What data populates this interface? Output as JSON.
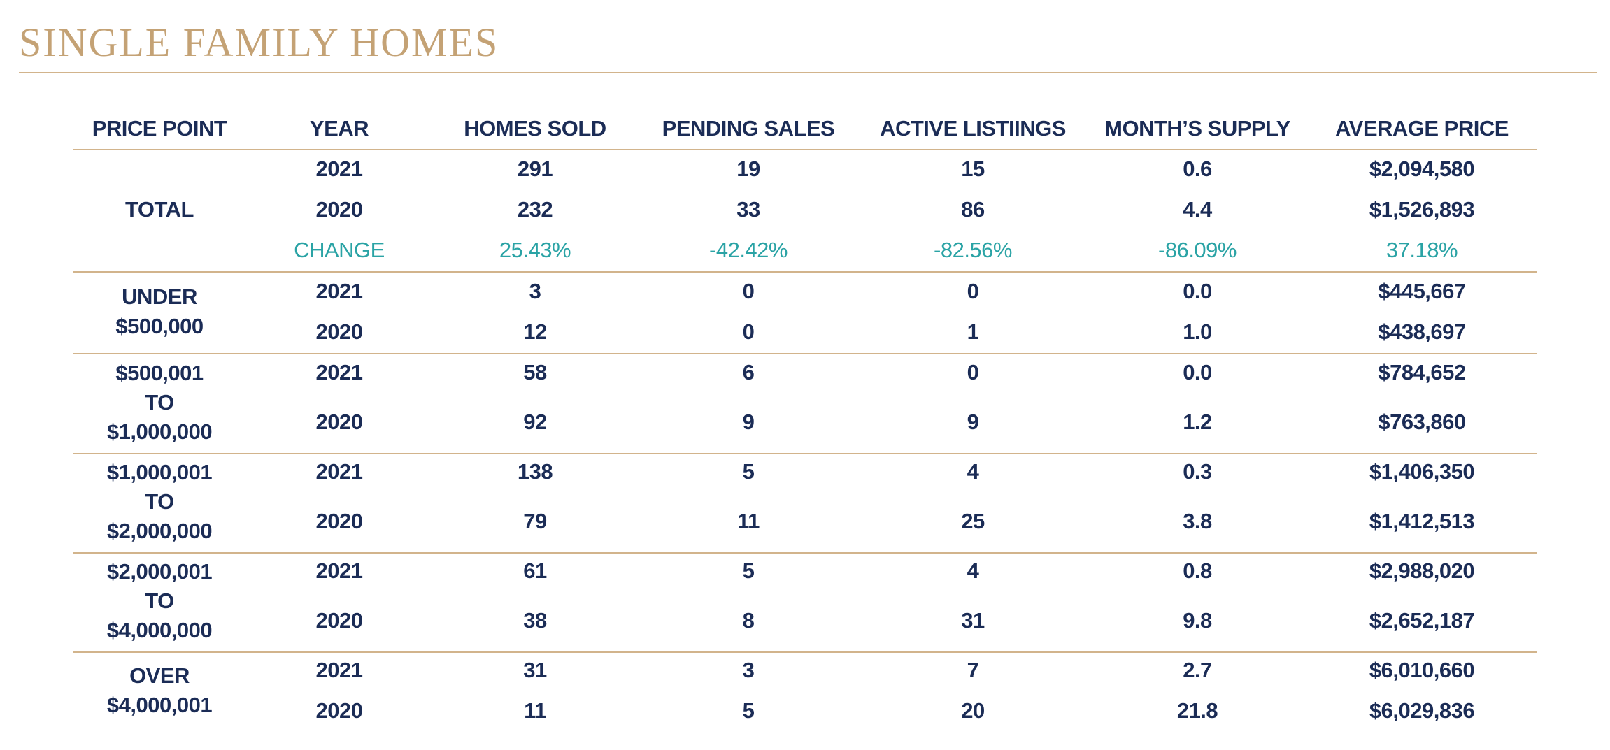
{
  "title": "SINGLE FAMILY HOMES",
  "colors": {
    "title": "#c4a275",
    "rule": "#d2b48c",
    "text": "#1b2c56",
    "change": "#2aa3a5"
  },
  "table": {
    "headers": {
      "price_point": "PRICE POINT",
      "year": "YEAR",
      "homes_sold": "HOMES SOLD",
      "pending_sales": "PENDING SALES",
      "active_listings": "ACTIVE LISTIINGS",
      "months_supply": "MONTH’S SUPPLY",
      "average_price": "AVERAGE PRICE"
    },
    "total": {
      "label": "TOTAL",
      "rows": [
        {
          "year": "2021",
          "homes_sold": "291",
          "pending": "19",
          "active": "15",
          "supply": "0.6",
          "avg_price": "$2,094,580"
        },
        {
          "year": "2020",
          "homes_sold": "232",
          "pending": "33",
          "active": "86",
          "supply": "4.4",
          "avg_price": "$1,526,893"
        }
      ],
      "change": {
        "label": "CHANGE",
        "homes_sold": "25.43%",
        "pending": "-42.42%",
        "active": "-82.56%",
        "supply": "-86.09%",
        "avg_price": "37.18%"
      }
    },
    "groups": [
      {
        "label_lines": [
          "UNDER",
          "$500,000"
        ],
        "rows": [
          {
            "year": "2021",
            "homes_sold": "3",
            "pending": "0",
            "active": "0",
            "supply": "0.0",
            "avg_price": "$445,667"
          },
          {
            "year": "2020",
            "homes_sold": "12",
            "pending": "0",
            "active": "1",
            "supply": "1.0",
            "avg_price": "$438,697"
          }
        ]
      },
      {
        "label_lines": [
          "$500,001",
          "TO",
          "$1,000,000"
        ],
        "rows": [
          {
            "year": "2021",
            "homes_sold": "58",
            "pending": "6",
            "active": "0",
            "supply": "0.0",
            "avg_price": "$784,652"
          },
          {
            "year": "2020",
            "homes_sold": "92",
            "pending": "9",
            "active": "9",
            "supply": "1.2",
            "avg_price": "$763,860"
          }
        ]
      },
      {
        "label_lines": [
          "$1,000,001",
          "TO",
          "$2,000,000"
        ],
        "rows": [
          {
            "year": "2021",
            "homes_sold": "138",
            "pending": "5",
            "active": "4",
            "supply": "0.3",
            "avg_price": "$1,406,350"
          },
          {
            "year": "2020",
            "homes_sold": "79",
            "pending": "11",
            "active": "25",
            "supply": "3.8",
            "avg_price": "$1,412,513"
          }
        ]
      },
      {
        "label_lines": [
          "$2,000,001",
          "TO",
          "$4,000,000"
        ],
        "rows": [
          {
            "year": "2021",
            "homes_sold": "61",
            "pending": "5",
            "active": "4",
            "supply": "0.8",
            "avg_price": "$2,988,020"
          },
          {
            "year": "2020",
            "homes_sold": "38",
            "pending": "8",
            "active": "31",
            "supply": "9.8",
            "avg_price": "$2,652,187"
          }
        ]
      },
      {
        "label_lines": [
          "OVER",
          "$4,000,001"
        ],
        "rows": [
          {
            "year": "2021",
            "homes_sold": "31",
            "pending": "3",
            "active": "7",
            "supply": "2.7",
            "avg_price": "$6,010,660"
          },
          {
            "year": "2020",
            "homes_sold": "11",
            "pending": "5",
            "active": "20",
            "supply": "21.8",
            "avg_price": "$6,029,836"
          }
        ]
      }
    ]
  }
}
